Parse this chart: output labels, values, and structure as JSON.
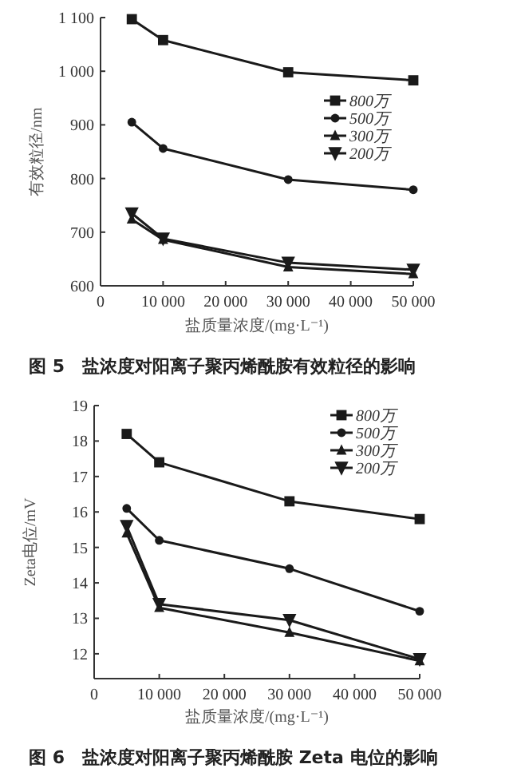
{
  "chart_data": [
    {
      "type": "line",
      "title": "图 5　盐浓度对阳离子聚丙烯酰胺有效粒径的影响",
      "xlabel": "盐质量浓度/(mg·L⁻¹)",
      "ylabel": "有效粒径/nm",
      "x": [
        5000,
        10000,
        30000,
        50000
      ],
      "xlim": [
        0,
        50000
      ],
      "xticks": [
        0,
        {
          "value": 10000,
          "label": "10 000"
        },
        {
          "value": 20000,
          "label": "20 000"
        },
        {
          "value": 30000,
          "label": "30 000"
        },
        {
          "value": 40000,
          "label": "40 000"
        },
        {
          "value": 50000,
          "label": "50 000"
        }
      ],
      "ylim": [
        600,
        1100
      ],
      "yticks": [
        600,
        700,
        800,
        900,
        {
          "value": 1000,
          "label": "1 000"
        },
        {
          "value": 1100,
          "label": "1 100"
        }
      ],
      "grid": false,
      "legend": "right",
      "series": [
        {
          "name": "800万",
          "color": "#1a1a1a",
          "marker": "square",
          "values": [
            1097,
            1058,
            998,
            983
          ]
        },
        {
          "name": "500万",
          "color": "#1a1a1a",
          "marker": "circle",
          "values": [
            905,
            856,
            798,
            779
          ]
        },
        {
          "name": "300万",
          "color": "#1a1a1a",
          "marker": "triangle",
          "values": [
            724,
            686,
            635,
            622
          ]
        },
        {
          "name": "200万",
          "color": "#1a1a1a",
          "marker": "triangle_down",
          "values": [
            735,
            688,
            643,
            630
          ]
        }
      ]
    },
    {
      "type": "line",
      "title": "图 6　盐浓度对阳离子聚丙烯酰胺 Zeta 电位的影响",
      "xlabel": "盐质量浓度/(mg·L⁻¹)",
      "ylabel": "Zeta电位/mV",
      "x": [
        5000,
        10000,
        30000,
        50000
      ],
      "xlim": [
        0,
        50000
      ],
      "xticks": [
        0,
        {
          "value": 10000,
          "label": "10 000"
        },
        {
          "value": 20000,
          "label": "20 000"
        },
        {
          "value": 30000,
          "label": "30 000"
        },
        {
          "value": 40000,
          "label": "40 000"
        },
        {
          "value": 50000,
          "label": "50 000"
        }
      ],
      "ylim": [
        11.3,
        19
      ],
      "yticks": [
        12,
        13,
        14,
        15,
        16,
        17,
        18,
        19
      ],
      "grid": false,
      "legend": "top right",
      "series": [
        {
          "name": "800万",
          "color": "#1a1a1a",
          "marker": "square",
          "values": [
            18.2,
            17.4,
            16.3,
            15.8
          ]
        },
        {
          "name": "500万",
          "color": "#1a1a1a",
          "marker": "circle",
          "values": [
            16.1,
            15.2,
            14.4,
            13.2
          ]
        },
        {
          "name": "300万",
          "color": "#1a1a1a",
          "marker": "triangle",
          "values": [
            15.4,
            13.3,
            12.6,
            11.8
          ]
        },
        {
          "name": "200万",
          "color": "#1a1a1a",
          "marker": "triangle_down",
          "values": [
            15.6,
            13.4,
            12.95,
            11.85
          ]
        }
      ]
    }
  ]
}
